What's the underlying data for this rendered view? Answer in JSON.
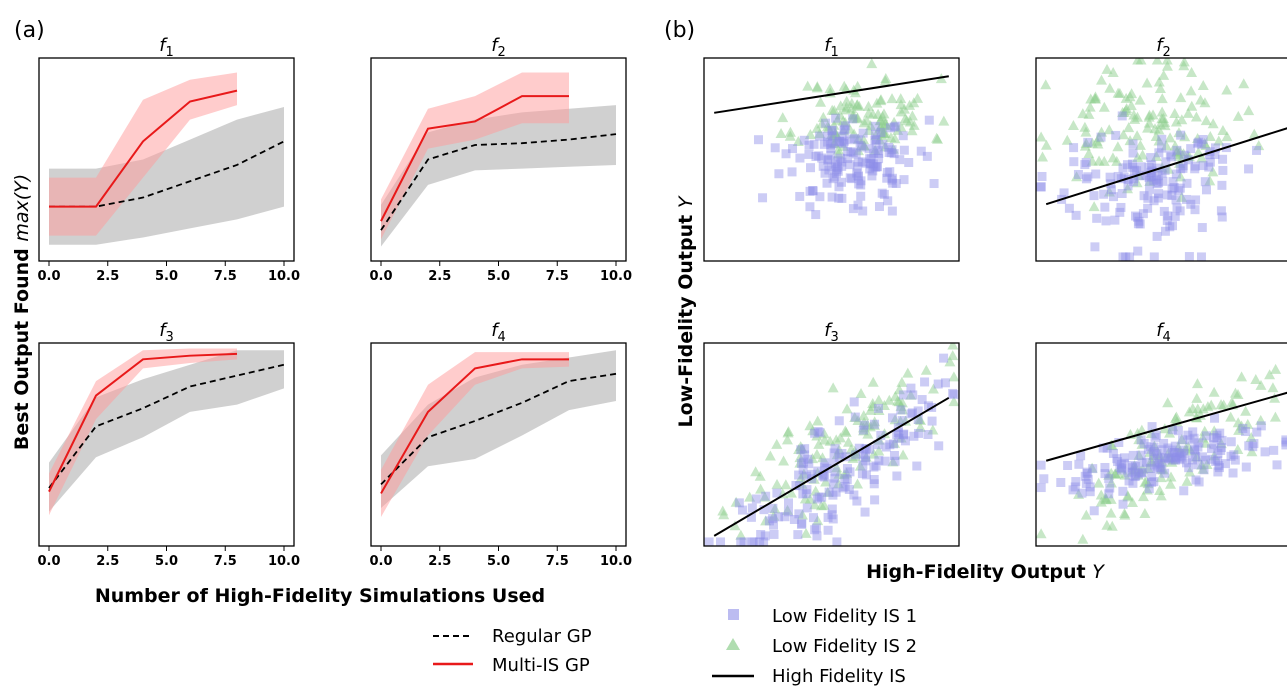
{
  "figure": {
    "panel_a_letter": "(a)",
    "panel_b_letter": "(b)"
  },
  "panel_a": {
    "ylabel": "Best Output Found",
    "ylabel_math": "max(Y)",
    "xlabel": "Number of High-Fidelity Simulations Used",
    "legend": [
      "Regular GP",
      "Multi-IS GP"
    ]
  },
  "panel_b": {
    "ylabel": "Low-Fidelity Output",
    "ylabel_math": "Y",
    "xlabel": "High-Fidelity Output",
    "xlabel_math": "Y",
    "legend": [
      "Low Fidelity IS 1",
      "Low Fidelity IS 2",
      "High Fidelity IS"
    ]
  },
  "colors": {
    "regular_gp": "#000000",
    "regular_band": "#aaaaaa",
    "multi_is": "#e8191a",
    "multi_band": "#ff9a9a",
    "is1": "#8f8fe8",
    "is2": "#8fcf8f",
    "hf_line": "#000000"
  },
  "chart_data": [
    {
      "type": "line",
      "panel": "a",
      "title": "f1",
      "x_ticks": [
        "0.0",
        "2.5",
        "5.0",
        "7.5",
        "10.0"
      ],
      "xlim": [
        0,
        10
      ],
      "ylim": [
        0,
        1
      ],
      "series": [
        {
          "name": "Regular GP",
          "style": "dashed",
          "x": [
            0,
            2,
            4,
            6,
            8,
            10
          ],
          "y": [
            0.26,
            0.26,
            0.31,
            0.4,
            0.49,
            0.62
          ],
          "lower": [
            0.05,
            0.05,
            0.09,
            0.14,
            0.19,
            0.26
          ],
          "upper": [
            0.47,
            0.47,
            0.52,
            0.63,
            0.74,
            0.81
          ]
        },
        {
          "name": "Multi-IS GP",
          "style": "solid",
          "x": [
            0,
            2,
            4,
            6,
            8
          ],
          "y": [
            0.26,
            0.26,
            0.62,
            0.84,
            0.9
          ],
          "lower": [
            0.1,
            0.1,
            0.42,
            0.74,
            0.82
          ],
          "upper": [
            0.42,
            0.42,
            0.85,
            0.96,
            1.0
          ]
        }
      ]
    },
    {
      "type": "line",
      "panel": "a",
      "title": "f2",
      "x_ticks": [
        "0.0",
        "2.5",
        "5.0",
        "7.5",
        "10.0"
      ],
      "xlim": [
        0,
        10
      ],
      "ylim": [
        0,
        1
      ],
      "series": [
        {
          "name": "Regular GP",
          "style": "dashed",
          "x": [
            0,
            2,
            4,
            6,
            8,
            10
          ],
          "y": [
            0.13,
            0.52,
            0.6,
            0.61,
            0.63,
            0.66
          ],
          "lower": [
            0.04,
            0.38,
            0.46,
            0.47,
            0.48,
            0.49
          ],
          "upper": [
            0.27,
            0.67,
            0.74,
            0.78,
            0.8,
            0.82
          ]
        },
        {
          "name": "Multi-IS GP",
          "style": "solid",
          "x": [
            0,
            2,
            4,
            6,
            8
          ],
          "y": [
            0.18,
            0.69,
            0.73,
            0.87,
            0.87
          ],
          "lower": [
            0.08,
            0.58,
            0.63,
            0.72,
            0.72
          ],
          "upper": [
            0.3,
            0.8,
            0.87,
            1.0,
            1.0
          ]
        }
      ]
    },
    {
      "type": "line",
      "panel": "a",
      "title": "f3",
      "x_ticks": [
        "0.0",
        "2.5",
        "5.0",
        "7.5",
        "10.0"
      ],
      "xlim": [
        0,
        10
      ],
      "ylim": [
        0,
        1
      ],
      "series": [
        {
          "name": "Regular GP",
          "style": "dashed",
          "x": [
            0,
            2,
            4,
            6,
            8,
            10
          ],
          "y": [
            0.28,
            0.62,
            0.72,
            0.84,
            0.9,
            0.96
          ],
          "lower": [
            0.15,
            0.45,
            0.56,
            0.7,
            0.74,
            0.83
          ],
          "upper": [
            0.42,
            0.78,
            0.88,
            0.96,
            1.04,
            1.04
          ]
        },
        {
          "name": "Multi-IS GP",
          "style": "solid",
          "x": [
            0,
            2,
            4,
            6,
            8
          ],
          "y": [
            0.26,
            0.79,
            0.99,
            1.01,
            1.02
          ],
          "lower": [
            0.13,
            0.66,
            0.94,
            0.97,
            0.99
          ],
          "upper": [
            0.36,
            0.87,
            1.04,
            1.05,
            1.05
          ]
        }
      ]
    },
    {
      "type": "line",
      "panel": "a",
      "title": "f4",
      "x_ticks": [
        "0.0",
        "2.5",
        "5.0",
        "7.5",
        "10.0"
      ],
      "xlim": [
        0,
        10
      ],
      "ylim": [
        0,
        1
      ],
      "series": [
        {
          "name": "Regular GP",
          "style": "dashed",
          "x": [
            0,
            2,
            4,
            6,
            8,
            10
          ],
          "y": [
            0.3,
            0.56,
            0.65,
            0.75,
            0.87,
            0.91
          ],
          "lower": [
            0.17,
            0.4,
            0.44,
            0.57,
            0.71,
            0.76
          ],
          "upper": [
            0.46,
            0.74,
            0.89,
            0.96,
            1.0,
            1.04
          ]
        },
        {
          "name": "Multi-IS GP",
          "style": "solid",
          "x": [
            0,
            2,
            4,
            6,
            8
          ],
          "y": [
            0.25,
            0.7,
            0.94,
            0.99,
            0.99
          ],
          "lower": [
            0.12,
            0.57,
            0.85,
            0.94,
            0.95
          ],
          "upper": [
            0.38,
            0.85,
            1.03,
            1.03,
            1.03
          ]
        }
      ]
    },
    {
      "type": "scatter",
      "panel": "b",
      "title": "f1",
      "xlim": [
        0,
        1
      ],
      "ylim": [
        0,
        1
      ],
      "fit_line": [
        [
          0.04,
          0.73
        ],
        [
          0.96,
          0.91
        ]
      ],
      "seed": 11,
      "is1": {
        "cx": 0.58,
        "cy": 0.5,
        "sx": 0.13,
        "sy": 0.11,
        "n": 150
      },
      "is2": {
        "cx": 0.63,
        "cy": 0.7,
        "sx": 0.13,
        "sy": 0.1,
        "n": 120
      }
    },
    {
      "type": "scatter",
      "panel": "b",
      "title": "f2",
      "xlim": [
        0,
        1
      ],
      "ylim": [
        0,
        1
      ],
      "fit_line": [
        [
          0.04,
          0.28
        ],
        [
          1.0,
          0.66
        ]
      ],
      "seed": 23,
      "is1": {
        "cx": 0.45,
        "cy": 0.38,
        "sx": 0.17,
        "sy": 0.16,
        "n": 150
      },
      "is2": {
        "cx": 0.42,
        "cy": 0.65,
        "sx": 0.18,
        "sy": 0.15,
        "n": 140
      }
    },
    {
      "type": "scatter",
      "panel": "b",
      "title": "f3",
      "xlim": [
        0,
        1
      ],
      "ylim": [
        0,
        1
      ],
      "fit_line": [
        [
          0.04,
          0.05
        ],
        [
          0.96,
          0.73
        ]
      ],
      "seed": 37,
      "is1": {
        "cx": 0.52,
        "cy": 0.38,
        "sx": 0.2,
        "sy": 0.13,
        "n": 160,
        "slope": 0.75
      },
      "is2": {
        "cx": 0.55,
        "cy": 0.5,
        "sx": 0.2,
        "sy": 0.13,
        "n": 130,
        "slope": 0.85
      }
    },
    {
      "type": "scatter",
      "panel": "b",
      "title": "f4",
      "xlim": [
        0,
        1
      ],
      "ylim": [
        0,
        1
      ],
      "fit_line": [
        [
          0.04,
          0.42
        ],
        [
          1.0,
          0.76
        ]
      ],
      "seed": 51,
      "is1": {
        "cx": 0.52,
        "cy": 0.42,
        "sx": 0.21,
        "sy": 0.07,
        "n": 160,
        "slope": 0.25
      },
      "is2": {
        "cx": 0.52,
        "cy": 0.45,
        "sx": 0.21,
        "sy": 0.12,
        "n": 130,
        "slope": 0.8
      }
    }
  ]
}
